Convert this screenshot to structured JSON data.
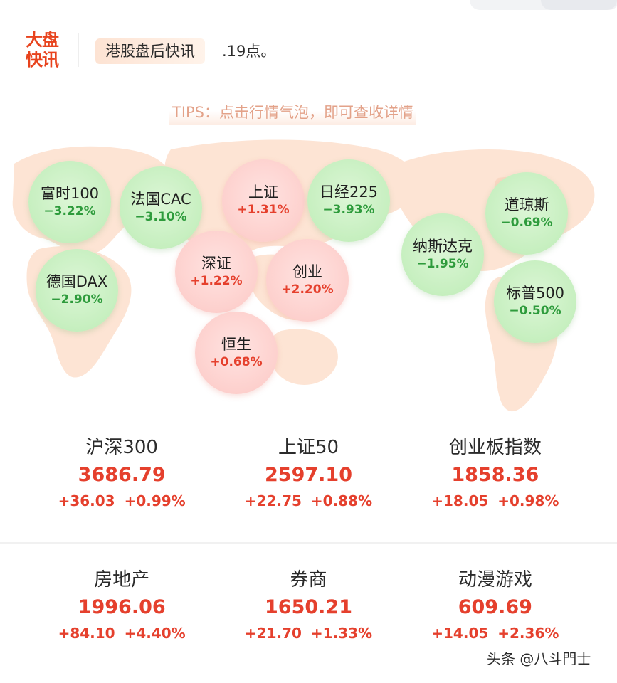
{
  "header": {
    "brand_line1": "大盘",
    "brand_line2": "快讯",
    "news_tag": "港股盘后快讯",
    "news_text": ".19点。"
  },
  "tips": "TIPS：点击行情气泡，即可查收详情",
  "bubbles": [
    {
      "name": "富时100",
      "change": "−3.22%",
      "trend": "down"
    },
    {
      "name": "法国CAC",
      "change": "−3.10%",
      "trend": "down"
    },
    {
      "name": "上证",
      "change": "+1.31%",
      "trend": "up"
    },
    {
      "name": "日经225",
      "change": "−3.93%",
      "trend": "down"
    },
    {
      "name": "道琼斯",
      "change": "−0.69%",
      "trend": "down"
    },
    {
      "name": "纳斯达克",
      "change": "−1.95%",
      "trend": "down"
    },
    {
      "name": "深证",
      "change": "+1.22%",
      "trend": "up"
    },
    {
      "name": "创业",
      "change": "+2.20%",
      "trend": "up"
    },
    {
      "name": "德国DAX",
      "change": "−2.90%",
      "trend": "down"
    },
    {
      "name": "标普500",
      "change": "−0.50%",
      "trend": "down"
    },
    {
      "name": "恒生",
      "change": "+0.68%",
      "trend": "up"
    }
  ],
  "indices": [
    {
      "name": "沪深300",
      "price": "3686.79",
      "change": "+36.03",
      "pct": "+0.99%"
    },
    {
      "name": "上证50",
      "price": "2597.10",
      "change": "+22.75",
      "pct": "+0.88%"
    },
    {
      "name": "创业板指数",
      "price": "1858.36",
      "change": "+18.05",
      "pct": "+0.98%"
    }
  ],
  "sectors": [
    {
      "name": "房地产",
      "price": "1996.06",
      "change": "+84.10",
      "pct": "+4.40%"
    },
    {
      "name": "券商",
      "price": "1650.21",
      "change": "+21.70",
      "pct": "+1.33%"
    },
    {
      "name": "动漫游戏",
      "price": "609.69",
      "change": "+14.05",
      "pct": "+2.36%"
    }
  ],
  "watermark": "头条 @八斗門士",
  "colors": {
    "up": "#e5402d",
    "down": "#2e9b3c",
    "brand": "#e8431d"
  }
}
